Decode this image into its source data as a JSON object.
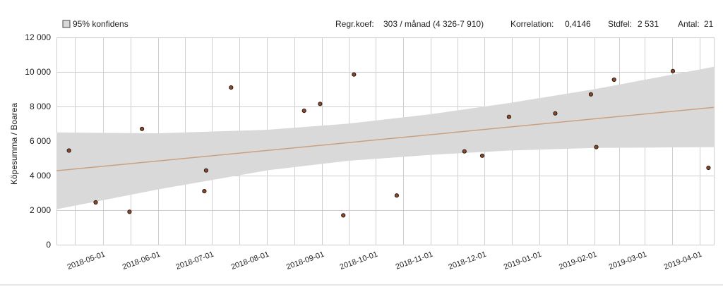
{
  "chart_data": {
    "type": "scatter",
    "legend": {
      "label": "95% konfidens",
      "placement": "top-left"
    },
    "stats": {
      "regr_label": "Regr.koef:",
      "regr_value": "303 / månad (4 326-7 910)",
      "korr_label": "Korrelation:",
      "korr_value": "0,4146",
      "stdfel_label": "Stdfel:",
      "stdfel_value": "2 531",
      "antal_label": "Antal:",
      "antal_value": "21"
    },
    "ylabel": "Köpesumma / Boarea",
    "ylim": [
      0,
      12000
    ],
    "yticks": [
      0,
      2000,
      4000,
      6000,
      8000,
      10000,
      12000
    ],
    "ytick_labels": [
      "0",
      "2 000",
      "4 000",
      "6 000",
      "8 000",
      "10 000",
      "12 000"
    ],
    "xlim": [
      "2018-04-05",
      "2019-04-09"
    ],
    "xticks": [
      "2018-05-01",
      "2018-06-01",
      "2018-07-01",
      "2018-08-01",
      "2018-09-01",
      "2018-10-01",
      "2018-11-01",
      "2018-12-01",
      "2019-01-01",
      "2019-02-01",
      "2019-03-01",
      "2019-04-01"
    ],
    "minor_grid": true,
    "grid": true,
    "points": [
      {
        "x": "2018-04-12",
        "y": 5450
      },
      {
        "x": "2018-04-27",
        "y": 2450
      },
      {
        "x": "2018-05-16",
        "y": 1900
      },
      {
        "x": "2018-05-23",
        "y": 6700
      },
      {
        "x": "2018-06-27",
        "y": 3100
      },
      {
        "x": "2018-06-28",
        "y": 4300
      },
      {
        "x": "2018-07-12",
        "y": 9100
      },
      {
        "x": "2018-08-22",
        "y": 7750
      },
      {
        "x": "2018-08-31",
        "y": 8150
      },
      {
        "x": "2018-09-13",
        "y": 1700
      },
      {
        "x": "2018-09-19",
        "y": 9850
      },
      {
        "x": "2018-10-13",
        "y": 2850
      },
      {
        "x": "2018-11-20",
        "y": 5400
      },
      {
        "x": "2018-11-30",
        "y": 5150
      },
      {
        "x": "2018-12-15",
        "y": 7400
      },
      {
        "x": "2019-01-10",
        "y": 7600
      },
      {
        "x": "2019-01-30",
        "y": 8700
      },
      {
        "x": "2019-02-02",
        "y": 5650
      },
      {
        "x": "2019-02-12",
        "y": 9550
      },
      {
        "x": "2019-03-17",
        "y": 10050
      },
      {
        "x": "2019-04-06",
        "y": 4450
      }
    ],
    "regression": {
      "y_start": 4280,
      "y_end": 7950
    },
    "confidence_band": {
      "x": [
        "2018-04-05",
        "2018-06-01",
        "2018-08-01",
        "2018-09-15",
        "2018-11-01",
        "2018-12-15",
        "2019-02-01",
        "2019-04-09"
      ],
      "lower": [
        2050,
        3200,
        4300,
        4850,
        5200,
        5450,
        5600,
        5650
      ],
      "upper": [
        6500,
        6450,
        6650,
        7000,
        7550,
        8200,
        9000,
        10300
      ]
    },
    "colors": {
      "band": "#d9d9d9",
      "regression_line": "#caa080",
      "point_fill": "#8b4a2e",
      "grid": "#cfcfcf",
      "legend_swatch": "#d9d9d9"
    }
  }
}
